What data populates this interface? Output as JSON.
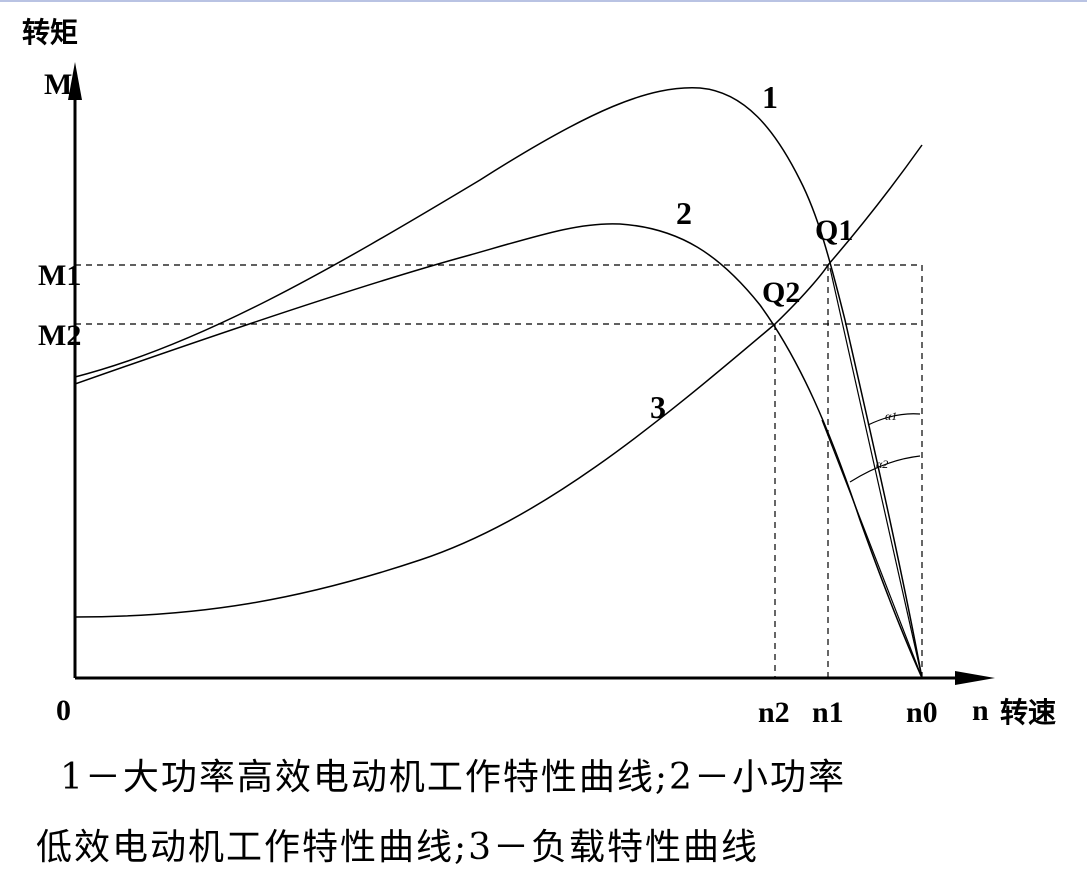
{
  "axes": {
    "y_symbol": "M",
    "y_name": "转矩",
    "x_symbol": "n",
    "x_name": "转速",
    "origin": "0"
  },
  "y_marks": {
    "m1": "M1",
    "m2": "M2"
  },
  "x_marks": {
    "n2": "n2",
    "n1": "n1",
    "n0": "n0"
  },
  "points": {
    "q1": "Q1",
    "q2": "Q2"
  },
  "curves": {
    "c1": "1",
    "c2": "2",
    "c3": "3"
  },
  "angles": {
    "a1": "α1",
    "a2": "α2"
  },
  "caption": {
    "line1": "1－大功率高效电动机工作特性曲线;2－小功率",
    "line2": "低效电动机工作特性曲线;3－负载特性曲线"
  }
}
